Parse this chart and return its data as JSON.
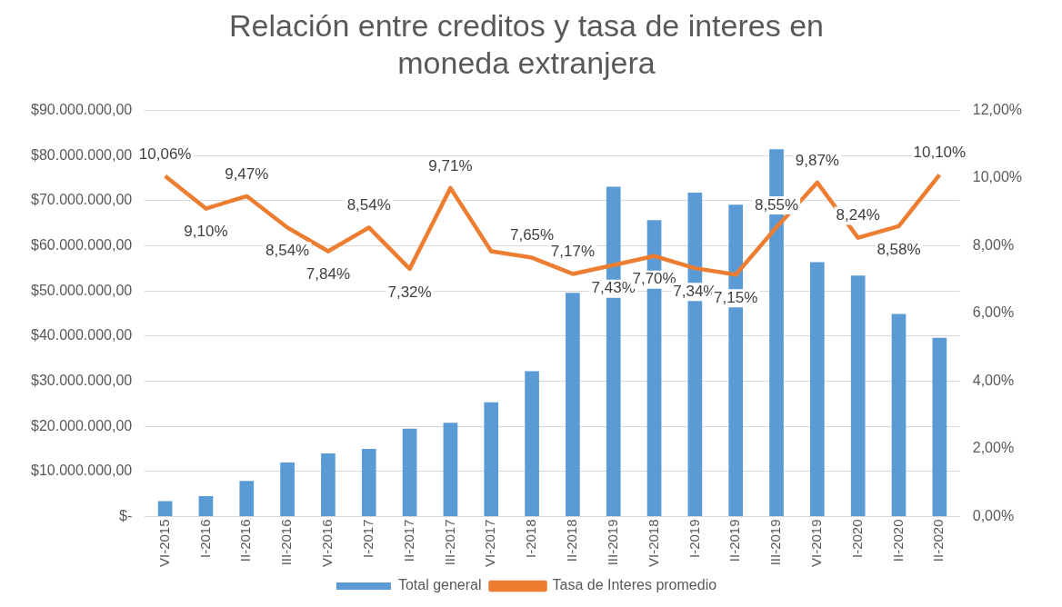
{
  "chart_data": {
    "type": "bar",
    "title": "Relación entre creditos y tasa de interes en moneda extranjera",
    "categories": [
      "VI-2015",
      "I-2016",
      "II-2016",
      "III-2016",
      "VI-2016",
      "I-2017",
      "II-2017",
      "III-2017",
      "VI-2017",
      "I-2018",
      "II-2018",
      "III-2019",
      "VI-2018",
      "I-2019",
      "II-2019",
      "III-2019",
      "VI-2019",
      "I-2020",
      "II-2020",
      "II-2020"
    ],
    "series": [
      {
        "name": "Total general",
        "type": "bar",
        "color": "#5b9bd5",
        "values": [
          3400000,
          4500000,
          7900000,
          12000000,
          14000000,
          15000000,
          19500000,
          20800000,
          25300000,
          32200000,
          49600000,
          73100000,
          65700000,
          71800000,
          69100000,
          81400000,
          56400000,
          53400000,
          44900000,
          39600000
        ]
      },
      {
        "name": "Tasa de Interes promedio",
        "type": "line",
        "axis": "y2",
        "color": "#ed7d31",
        "values": [
          10.06,
          9.1,
          9.47,
          8.54,
          7.84,
          8.54,
          7.32,
          9.71,
          7.84,
          7.65,
          7.17,
          7.43,
          7.7,
          7.34,
          7.15,
          8.55,
          9.87,
          8.24,
          8.58,
          10.1
        ],
        "value_labels": [
          "10,06%",
          "9,10%",
          "9,47%",
          "8,54%",
          "7,84%",
          "8,54%",
          "7,32%",
          "9,71%",
          null,
          "7,65%",
          "7,17%",
          "7,43%",
          "7,70%",
          "7,34%",
          "7,15%",
          "8,55%",
          "9,87%",
          "8,24%",
          "8,58%",
          "10,10%"
        ]
      }
    ],
    "ylim": [
      0,
      90000000
    ],
    "yticks": [
      {
        "value": 0,
        "label": "$-"
      },
      {
        "value": 10000000,
        "label": "$10.000.000,00"
      },
      {
        "value": 20000000,
        "label": "$20.000.000,00"
      },
      {
        "value": 30000000,
        "label": "$30.000.000,00"
      },
      {
        "value": 40000000,
        "label": "$40.000.000,00"
      },
      {
        "value": 50000000,
        "label": "$50.000.000,00"
      },
      {
        "value": 60000000,
        "label": "$60.000.000,00"
      },
      {
        "value": 70000000,
        "label": "$70.000.000,00"
      },
      {
        "value": 80000000,
        "label": "$80.000.000,00"
      },
      {
        "value": 90000000,
        "label": "$90.000.000,00"
      }
    ],
    "y2lim": [
      0,
      12
    ],
    "y2ticks": [
      {
        "value": 0,
        "label": "0,00%"
      },
      {
        "value": 2,
        "label": "2,00%"
      },
      {
        "value": 4,
        "label": "4,00%"
      },
      {
        "value": 6,
        "label": "6,00%"
      },
      {
        "value": 8,
        "label": "8,00%"
      },
      {
        "value": 10,
        "label": "10,00%"
      },
      {
        "value": 12,
        "label": "12,00%"
      }
    ],
    "grid": "y",
    "legend": "bottom",
    "marker": "none",
    "line_style": "solid"
  }
}
